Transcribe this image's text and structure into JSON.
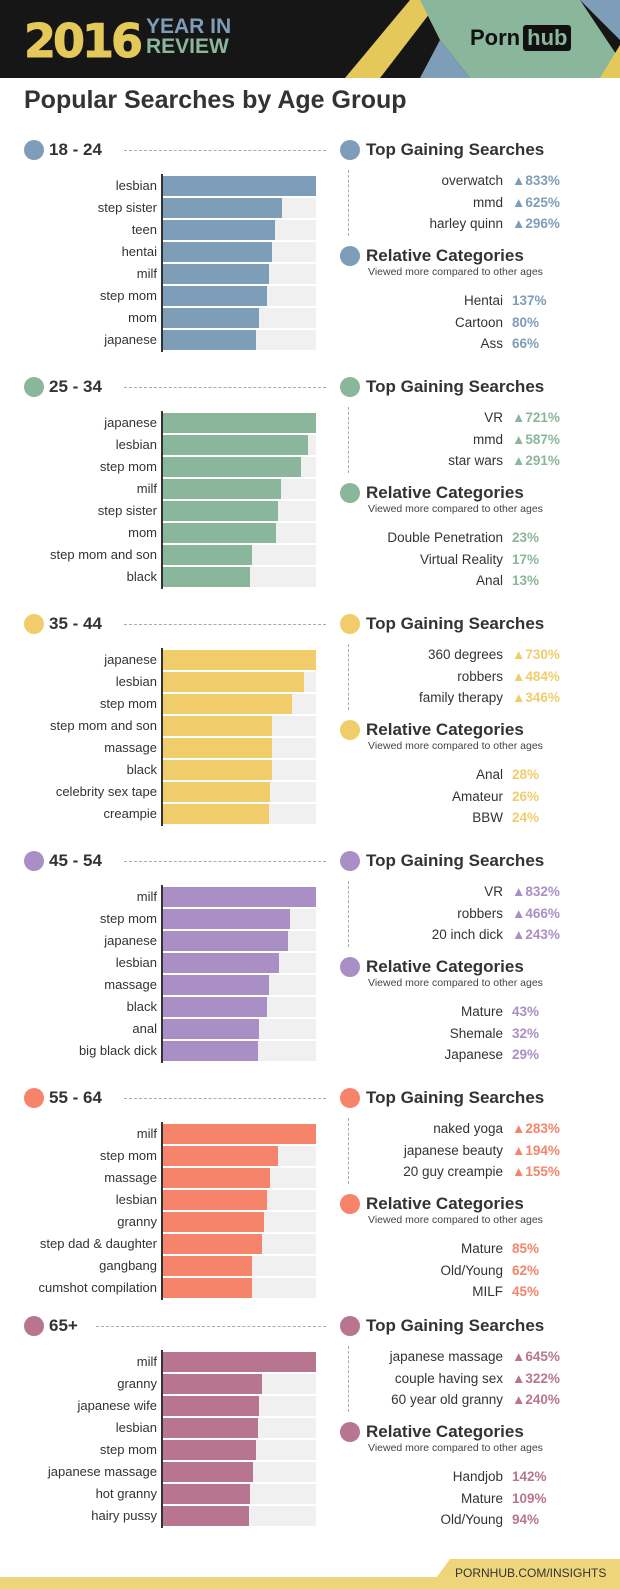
{
  "header": {
    "year": "2016",
    "year_in": "YEAR IN",
    "review": "REVIEW",
    "logo_left": "Porn",
    "logo_right": "hub",
    "colors": {
      "band": "#161616",
      "yellow": "#e4c95a",
      "green": "#8ab79b",
      "blue": "#7e9db8"
    }
  },
  "page_title": "Popular Searches by Age Group",
  "labels": {
    "top_gaining": "Top Gaining Searches",
    "relative": "Relative Categories",
    "relative_sub": "Viewed more compared to other ages"
  },
  "footer": {
    "link": "PORNHUB.COM/INSIGHTS"
  },
  "chart_data": [
    {
      "type": "bar",
      "orientation": "horizontal",
      "title": "18 - 24",
      "color": "#7e9db8",
      "xlim": [
        0,
        1
      ],
      "categories": [
        "lesbian",
        "step sister",
        "teen",
        "hentai",
        "milf",
        "step mom",
        "mom",
        "japanese"
      ],
      "values": [
        1.0,
        0.78,
        0.73,
        0.71,
        0.69,
        0.68,
        0.63,
        0.61
      ],
      "top_gaining": [
        {
          "name": "overwatch",
          "value": "▲833%"
        },
        {
          "name": "mmd",
          "value": "▲625%"
        },
        {
          "name": "harley quinn",
          "value": "▲296%"
        }
      ],
      "relative": [
        {
          "name": "Hentai",
          "value": "137%"
        },
        {
          "name": "Cartoon",
          "value": "80%"
        },
        {
          "name": "Ass",
          "value": "66%"
        }
      ]
    },
    {
      "type": "bar",
      "orientation": "horizontal",
      "title": "25 - 34",
      "color": "#8ab79b",
      "xlim": [
        0,
        1
      ],
      "categories": [
        "japanese",
        "lesbian",
        "step mom",
        "milf",
        "step sister",
        "mom",
        "step mom and son",
        "black"
      ],
      "values": [
        1.0,
        0.95,
        0.9,
        0.77,
        0.75,
        0.74,
        0.58,
        0.57
      ],
      "top_gaining": [
        {
          "name": "VR",
          "value": "▲721%"
        },
        {
          "name": "mmd",
          "value": "▲587%"
        },
        {
          "name": "star wars",
          "value": "▲291%"
        }
      ],
      "relative": [
        {
          "name": "Double Penetration",
          "value": "23%"
        },
        {
          "name": "Virtual Reality",
          "value": "17%"
        },
        {
          "name": "Anal",
          "value": "13%"
        }
      ]
    },
    {
      "type": "bar",
      "orientation": "horizontal",
      "title": "35 - 44",
      "color": "#f0cd6a",
      "xlim": [
        0,
        1
      ],
      "categories": [
        "japanese",
        "lesbian",
        "step mom",
        "step mom and son",
        "massage",
        "black",
        "celebrity sex tape",
        "creampie"
      ],
      "values": [
        1.0,
        0.92,
        0.84,
        0.71,
        0.71,
        0.71,
        0.7,
        0.69
      ],
      "top_gaining": [
        {
          "name": "360 degrees",
          "value": "▲730%"
        },
        {
          "name": "robbers",
          "value": "▲484%"
        },
        {
          "name": "family therapy",
          "value": "▲346%"
        }
      ],
      "relative": [
        {
          "name": "Anal",
          "value": "28%"
        },
        {
          "name": "Amateur",
          "value": "26%"
        },
        {
          "name": "BBW",
          "value": "24%"
        }
      ]
    },
    {
      "type": "bar",
      "orientation": "horizontal",
      "title": "45 - 54",
      "color": "#aa8fc6",
      "xlim": [
        0,
        1
      ],
      "categories": [
        "milf",
        "step mom",
        "japanese",
        "lesbian",
        "massage",
        "black",
        "anal",
        "big black dick"
      ],
      "values": [
        1.0,
        0.83,
        0.82,
        0.76,
        0.69,
        0.68,
        0.63,
        0.62
      ],
      "top_gaining": [
        {
          "name": "VR",
          "value": "▲832%"
        },
        {
          "name": "robbers",
          "value": "▲466%"
        },
        {
          "name": "20 inch dick",
          "value": "▲243%"
        }
      ],
      "relative": [
        {
          "name": "Mature",
          "value": "43%"
        },
        {
          "name": "Shemale",
          "value": "32%"
        },
        {
          "name": "Japanese",
          "value": "29%"
        }
      ]
    },
    {
      "type": "bar",
      "orientation": "horizontal",
      "title": "55 - 64",
      "color": "#f5846a",
      "xlim": [
        0,
        1
      ],
      "categories": [
        "milf",
        "step mom",
        "massage",
        "lesbian",
        "granny",
        "step dad & daughter",
        "gangbang",
        "cumshot compilation"
      ],
      "values": [
        1.0,
        0.75,
        0.7,
        0.68,
        0.66,
        0.65,
        0.58,
        0.58
      ],
      "top_gaining": [
        {
          "name": "naked yoga",
          "value": "▲283%"
        },
        {
          "name": "japanese beauty",
          "value": "▲194%"
        },
        {
          "name": "20 guy creampie",
          "value": "▲155%"
        }
      ],
      "relative": [
        {
          "name": "Mature",
          "value": "85%"
        },
        {
          "name": "Old/Young",
          "value": "62%"
        },
        {
          "name": "MILF",
          "value": "45%"
        }
      ]
    },
    {
      "type": "bar",
      "orientation": "horizontal",
      "title": "65+",
      "color": "#b8758f",
      "xlim": [
        0,
        1
      ],
      "categories": [
        "milf",
        "granny",
        "japanese wife",
        "lesbian",
        "step mom",
        "japanese massage",
        "hot granny",
        "hairy pussy"
      ],
      "values": [
        1.0,
        0.65,
        0.63,
        0.62,
        0.61,
        0.59,
        0.57,
        0.56
      ],
      "top_gaining": [
        {
          "name": "japanese massage",
          "value": "▲645%"
        },
        {
          "name": "couple having sex",
          "value": "▲322%"
        },
        {
          "name": "60 year old granny",
          "value": "▲240%"
        }
      ],
      "relative": [
        {
          "name": "Handjob",
          "value": "142%"
        },
        {
          "name": "Mature",
          "value": "109%"
        },
        {
          "name": "Old/Young",
          "value": "94%"
        }
      ]
    }
  ]
}
